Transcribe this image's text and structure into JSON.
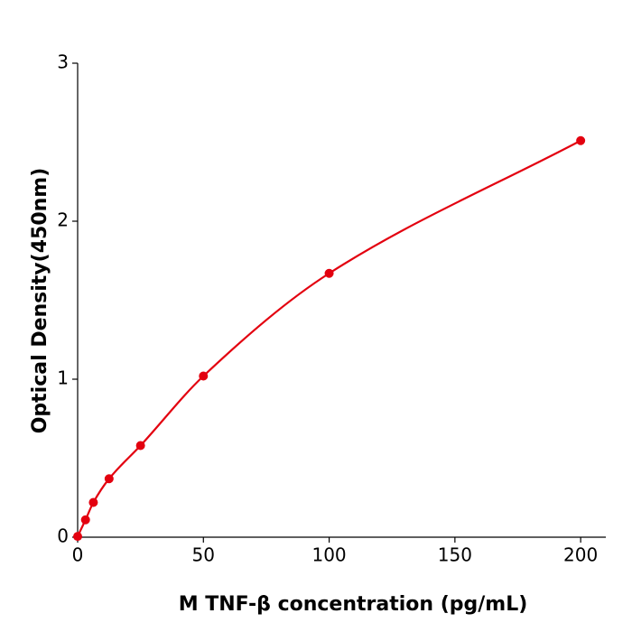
{
  "chart_data": {
    "type": "scatter",
    "x_label": "M  TNF-β concentration (pg/mL)",
    "y_label": "Optical Density(450nm)",
    "series": [
      {
        "color": "#e3000f",
        "x": [
          0,
          3.125,
          6.25,
          12.5,
          25,
          50,
          100,
          200
        ],
        "values": [
          0.005,
          0.11,
          0.22,
          0.37,
          0.58,
          1.02,
          1.67,
          2.51
        ]
      }
    ],
    "fit_line": true,
    "xlim": [
      0,
      210
    ],
    "xticks": [
      0,
      50,
      100,
      150,
      200
    ],
    "ylim": [
      0,
      3
    ],
    "yticks": [
      0,
      1,
      2,
      3
    ],
    "grid": false
  }
}
